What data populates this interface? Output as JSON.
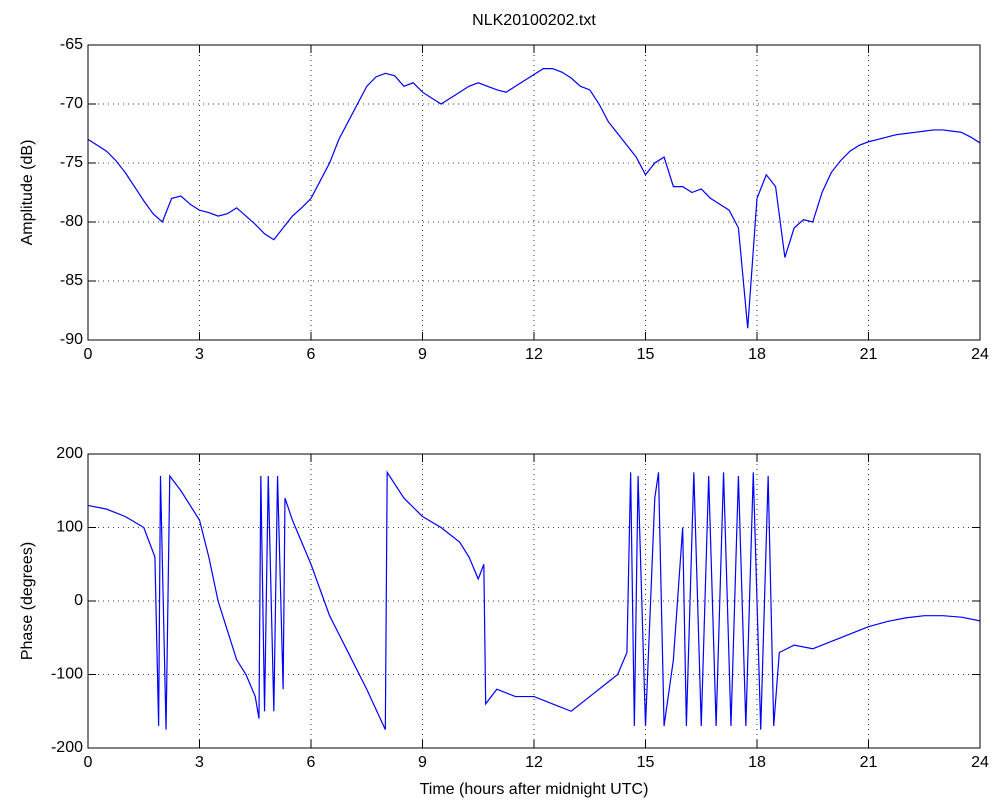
{
  "chart_data": [
    {
      "type": "line",
      "title": "NLK20100202.txt",
      "y_label": "Amplitude (dB)",
      "grid": true,
      "xlim": [
        0,
        24
      ],
      "xticks": [
        0,
        3,
        6,
        9,
        12,
        15,
        18,
        21,
        24
      ],
      "ylim": [
        -90,
        -65
      ],
      "yticks": [
        -90,
        -85,
        -80,
        -75,
        -70,
        -65
      ],
      "x": [
        0,
        0.25,
        0.5,
        0.75,
        1,
        1.25,
        1.5,
        1.75,
        2,
        2.25,
        2.5,
        2.75,
        3,
        3.25,
        3.5,
        3.75,
        4,
        4.25,
        4.5,
        4.75,
        5,
        5.25,
        5.5,
        5.75,
        6,
        6.25,
        6.5,
        6.75,
        7,
        7.25,
        7.5,
        7.75,
        8,
        8.25,
        8.5,
        8.75,
        9,
        9.25,
        9.5,
        9.75,
        10,
        10.25,
        10.5,
        10.75,
        11,
        11.25,
        11.5,
        11.75,
        12,
        12.25,
        12.5,
        12.75,
        13,
        13.25,
        13.5,
        13.75,
        14,
        14.25,
        14.5,
        14.75,
        15,
        15.25,
        15.5,
        15.75,
        16,
        16.25,
        16.5,
        16.75,
        17,
        17.25,
        17.5,
        17.75,
        18,
        18.25,
        18.5,
        18.75,
        19,
        19.25,
        19.5,
        19.75,
        20,
        20.25,
        20.5,
        20.75,
        21,
        21.25,
        21.5,
        21.75,
        22,
        22.25,
        22.5,
        22.75,
        23,
        23.25,
        23.5,
        23.75,
        24
      ],
      "series": [
        {
          "name": "Amplitude",
          "color": "#0000ff",
          "values": [
            -73,
            -73.5,
            -74,
            -74.8,
            -75.8,
            -77,
            -78.2,
            -79.3,
            -80,
            -78,
            -77.8,
            -78.5,
            -79,
            -79.2,
            -79.5,
            -79.3,
            -78.8,
            -79.5,
            -80.2,
            -81,
            -81.5,
            -80.5,
            -79.5,
            -78.8,
            -78,
            -76.5,
            -75,
            -73,
            -71.5,
            -70,
            -68.5,
            -67.7,
            -67.4,
            -67.6,
            -68.5,
            -68.2,
            -69,
            -69.5,
            -70,
            -69.5,
            -69,
            -68.5,
            -68.2,
            -68.5,
            -68.8,
            -69,
            -68.5,
            -68,
            -67.5,
            -67,
            -67,
            -67.3,
            -67.8,
            -68.5,
            -68.8,
            -70,
            -71.5,
            -72.5,
            -73.5,
            -74.5,
            -76,
            -75,
            -74.5,
            -77,
            -77,
            -77.5,
            -77.2,
            -78,
            -78.5,
            -79,
            -80.5,
            -89,
            -78,
            -76,
            -77,
            -83,
            -80.5,
            -79.8,
            -80,
            -77.5,
            -75.8,
            -74.8,
            -74,
            -73.5,
            -73.2,
            -73,
            -72.8,
            -72.6,
            -72.5,
            -72.4,
            -72.3,
            -72.2,
            -72.2,
            -72.3,
            -72.4,
            -72.8,
            -73.3
          ]
        }
      ]
    },
    {
      "type": "line",
      "x_label": "Time (hours after midnight UTC)",
      "y_label": "Phase (degrees)",
      "grid": true,
      "xlim": [
        0,
        24
      ],
      "xticks": [
        0,
        3,
        6,
        9,
        12,
        15,
        18,
        21,
        24
      ],
      "ylim": [
        -200,
        200
      ],
      "yticks": [
        -200,
        -100,
        0,
        100,
        200
      ],
      "x": [
        0,
        0.5,
        1,
        1.5,
        1.8,
        1.9,
        1.95,
        2.1,
        2.2,
        2.5,
        3,
        3.25,
        3.5,
        3.75,
        4,
        4.25,
        4.5,
        4.6,
        4.65,
        4.75,
        4.85,
        5,
        5.1,
        5.25,
        5.3,
        5.5,
        6,
        6.5,
        7,
        7.5,
        8,
        8.05,
        8.5,
        9,
        9.5,
        10,
        10.25,
        10.5,
        10.65,
        10.7,
        11,
        11.5,
        12,
        12.5,
        13,
        13.5,
        14,
        14.25,
        14.5,
        14.6,
        14.7,
        14.8,
        15,
        15.25,
        15.35,
        15.5,
        15.75,
        16,
        16.1,
        16.3,
        16.5,
        16.7,
        16.9,
        17.1,
        17.3,
        17.5,
        17.7,
        17.9,
        18.1,
        18.3,
        18.45,
        18.6,
        19,
        19.5,
        20,
        20.5,
        21,
        21.5,
        22,
        22.5,
        23,
        23.5,
        24
      ],
      "series": [
        {
          "name": "Phase",
          "color": "#0000ff",
          "values": [
            130,
            125,
            115,
            100,
            60,
            -170,
            170,
            -175,
            170,
            150,
            110,
            60,
            0,
            -40,
            -80,
            -100,
            -130,
            -160,
            170,
            -150,
            170,
            -150,
            170,
            -120,
            140,
            110,
            50,
            -20,
            -70,
            -120,
            -175,
            175,
            140,
            115,
            100,
            80,
            60,
            30,
            50,
            -140,
            -120,
            -130,
            -130,
            -140,
            -150,
            -130,
            -110,
            -100,
            -70,
            175,
            -170,
            170,
            -170,
            140,
            175,
            -170,
            -80,
            100,
            -170,
            175,
            -170,
            170,
            -170,
            175,
            -170,
            170,
            -170,
            175,
            -175,
            170,
            -170,
            -70,
            -60,
            -65,
            -55,
            -45,
            -35,
            -28,
            -23,
            -20,
            -20,
            -22,
            -27
          ]
        }
      ]
    }
  ]
}
